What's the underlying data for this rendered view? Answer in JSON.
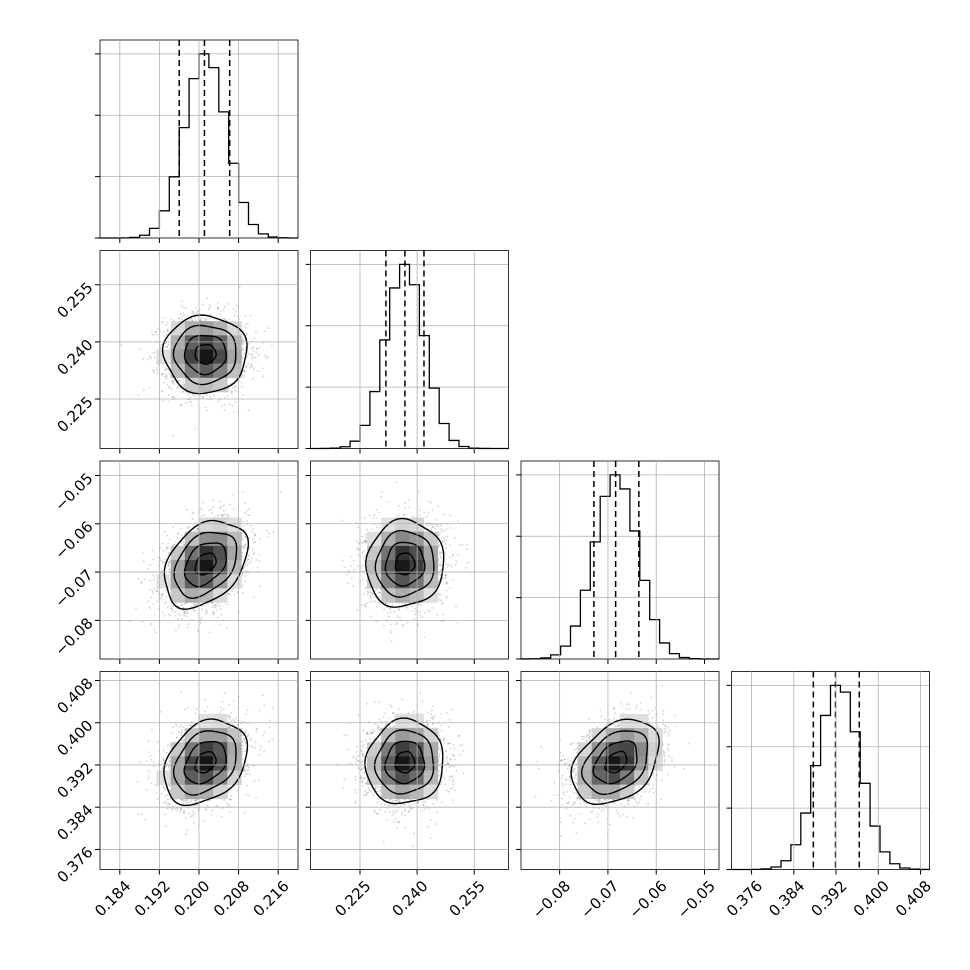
{
  "colors": {
    "ink": "#000000",
    "grid": "#b0b0b0",
    "scatter": "#808080"
  },
  "chart_data": {
    "type": "corner",
    "grid": true,
    "parameters": [
      {
        "range": [
          0.18,
          0.22
        ],
        "ticks": [
          "0.184",
          "0.192",
          "0.200",
          "0.208",
          "0.216"
        ],
        "tick_values": [
          0.184,
          0.192,
          0.2,
          0.208,
          0.216
        ],
        "mean": 0.2013,
        "sd": 0.0042,
        "quantiles": [
          0.196,
          0.2011,
          0.2062
        ]
      },
      {
        "range": [
          0.212,
          0.264
        ],
        "ticks": [
          "0.225",
          "0.240",
          "0.255"
        ],
        "tick_values": [
          0.225,
          0.24,
          0.255
        ],
        "mean": 0.2368,
        "sd": 0.0051,
        "quantiles": [
          0.2318,
          0.2368,
          0.2418
        ]
      },
      {
        "range": [
          -0.088,
          -0.047
        ],
        "ticks": [
          "−0.08",
          "−0.07",
          "−0.06",
          "−0.05"
        ],
        "tick_values": [
          -0.08,
          -0.07,
          -0.06,
          -0.05
        ],
        "mean": -0.0683,
        "sd": 0.0045,
        "quantiles": [
          -0.0729,
          -0.0684,
          -0.0636
        ]
      },
      {
        "range": [
          0.3722,
          0.4097
        ],
        "ticks": [
          "0.376",
          "0.384",
          "0.392",
          "0.400",
          "0.408"
        ],
        "tick_values": [
          0.376,
          0.384,
          0.392,
          0.4,
          0.408
        ],
        "mean": 0.3925,
        "sd": 0.004,
        "quantiles": [
          0.3877,
          0.3919,
          0.3964
        ]
      }
    ],
    "correlations": [
      {
        "i": 1,
        "j": 0,
        "rho": 0.0
      },
      {
        "i": 2,
        "j": 0,
        "rho": 0.35
      },
      {
        "i": 2,
        "j": 1,
        "rho": 0.05
      },
      {
        "i": 3,
        "j": 0,
        "rho": 0.3
      },
      {
        "i": 3,
        "j": 1,
        "rho": 0.05
      },
      {
        "i": 3,
        "j": 2,
        "rho": 0.35
      }
    ],
    "histogram_bins": 20,
    "contour_levels_sigma": [
      0.5,
      1.0,
      1.5,
      2.0
    ]
  }
}
